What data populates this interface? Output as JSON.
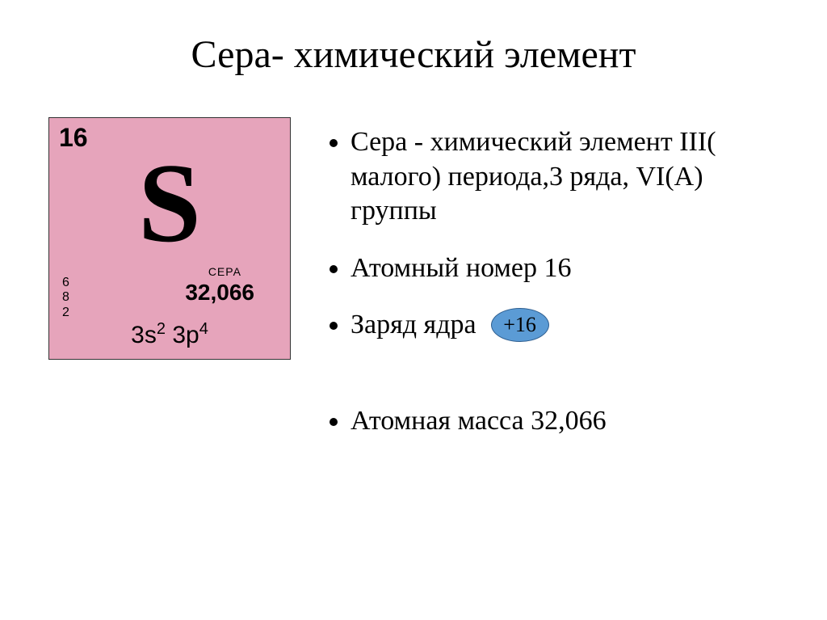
{
  "title": "Сера- химический элемент",
  "tile": {
    "bg_color": "#e6a4bb",
    "border_color": "#333333",
    "atomic_number": "16",
    "symbol": "S",
    "name": "СЕРА",
    "mass": "32,066",
    "shells": [
      "6",
      "8",
      "2"
    ],
    "config_html": "3s<sup>2</sup> 3p<sup>4</sup>"
  },
  "bullets": {
    "b1": "Сера - химический элемент III( малого) периода,3 ряда, VI(А) группы",
    "b2": "Атомный номер 16",
    "b3_label": "Заряд ядра",
    "b3_badge": "+16",
    "b4": "Атомная масса 32,066"
  },
  "badge": {
    "fill_color": "#5b9bd5",
    "border_color": "#2e5e8f",
    "text_color": "#000000"
  },
  "text_color": "#000000",
  "background_color": "#ffffff"
}
